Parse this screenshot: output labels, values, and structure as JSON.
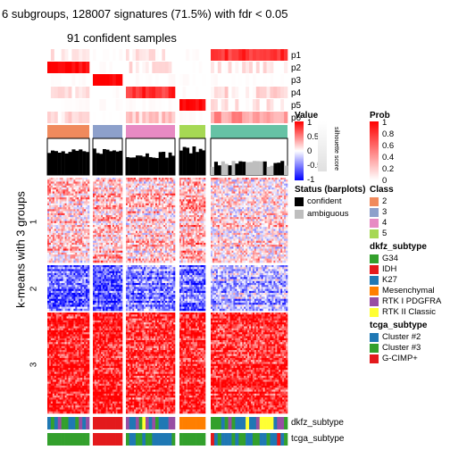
{
  "title_line1": "6 subgroups, 128007 signatures (71.5%) with fdr < 0.05",
  "title_line2": "91 confident samples",
  "ylabel": "k-means with 3 groups",
  "row_groups": [
    "1",
    "2",
    "3"
  ],
  "prob_tracks": [
    "p1",
    "p2",
    "p3",
    "p4",
    "p5",
    "p6"
  ],
  "bottom_tracks": [
    "dkfz_subtype",
    "tcga_subtype"
  ],
  "colors": {
    "red": "#ff0000",
    "blue": "#0000ff",
    "white": "#ffffff",
    "class_2": "#f08a5d",
    "class_3": "#8da0cb",
    "class_4": "#e78ac3",
    "class_5": "#a6d854",
    "class_6": "#66c2a5"
  },
  "legend": {
    "value": {
      "title": "Value",
      "ticks": [
        "1",
        "0.5",
        "0",
        "-0.5",
        "-1"
      ]
    },
    "silhouette": {
      "title": "silhouette score",
      "ticks": [
        "1",
        "0.8",
        "0.6",
        "0.4",
        "0.2",
        "0"
      ]
    },
    "prob": {
      "title": "Prob",
      "ticks": [
        "1",
        "0.8",
        "0.6",
        "0.4",
        "0.2",
        "0"
      ]
    },
    "status": {
      "title": "Status (barplots)",
      "items": [
        {
          "label": "confident",
          "color": "#000000"
        },
        {
          "label": "ambiguous",
          "color": "#bebebe"
        }
      ]
    },
    "class": {
      "title": "Class",
      "items": [
        {
          "label": "2",
          "color": "#f08a5d"
        },
        {
          "label": "3",
          "color": "#8da0cb"
        },
        {
          "label": "4",
          "color": "#e78ac3"
        },
        {
          "label": "5",
          "color": "#a6d854"
        }
      ]
    },
    "dkfz": {
      "title": "dkfz_subtype",
      "items": [
        {
          "label": "G34",
          "color": "#33a02c"
        },
        {
          "label": "IDH",
          "color": "#e31a1c"
        },
        {
          "label": "K27",
          "color": "#1f78b4"
        },
        {
          "label": "Mesenchymal",
          "color": "#ff7f00"
        },
        {
          "label": "RTK I PDGFRA",
          "color": "#984ea3"
        },
        {
          "label": "RTK II Classic",
          "color": "#ffff33"
        }
      ]
    },
    "tcga": {
      "title": "tcga_subtype",
      "items": [
        {
          "label": "Cluster #2",
          "color": "#1f78b4"
        },
        {
          "label": "Cluster #3",
          "color": "#33a02c"
        },
        {
          "label": "G-CIMP+",
          "color": "#e31a1c"
        }
      ]
    }
  },
  "chart_data": {
    "type": "heatmap",
    "title": "6 subgroups, 128007 signatures (71.5%) with fdr < 0.05",
    "subtitle": "91 confident samples",
    "ylabel": "k-means with 3 groups",
    "value_range": [
      -1,
      1
    ],
    "column_groups": [
      {
        "class": "2",
        "samples": 12
      },
      {
        "class": "3",
        "samples": 9
      },
      {
        "class": "4",
        "samples": 15
      },
      {
        "class": "5",
        "samples": 8
      },
      {
        "class": "6",
        "samples": 22
      }
    ],
    "row_groups": [
      {
        "name": "1",
        "mean_value_by_class": [
          0.2,
          0.25,
          0.2,
          0.3,
          0.15
        ]
      },
      {
        "name": "2",
        "mean_value_by_class": [
          -0.6,
          -0.65,
          -0.5,
          -0.55,
          -0.3
        ]
      },
      {
        "name": "3",
        "mean_value_by_class": [
          0.9,
          0.95,
          0.8,
          0.9,
          0.85
        ]
      }
    ],
    "membership_probability": {
      "p1": [
        0.05,
        0.0,
        0.05,
        0.0,
        0.8
      ],
      "p2": [
        0.95,
        0.0,
        0.05,
        0.0,
        0.05
      ],
      "p3": [
        0.0,
        1.0,
        0.0,
        0.0,
        0.0
      ],
      "p4": [
        0.05,
        0.0,
        0.8,
        0.0,
        0.1
      ],
      "p5": [
        0.0,
        0.0,
        0.0,
        1.0,
        0.05
      ],
      "p6": [
        0.1,
        0.0,
        0.2,
        0.0,
        0.4
      ]
    },
    "silhouette_mean": [
      0.78,
      0.85,
      0.72,
      0.88,
      0.4
    ]
  }
}
